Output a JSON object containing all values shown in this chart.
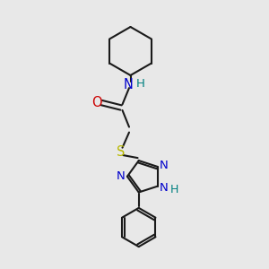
{
  "background_color": "#e8e8e8",
  "bond_color": "#1a1a1a",
  "nitrogen_color": "#0000cc",
  "oxygen_color": "#cc0000",
  "sulfur_color": "#b8b800",
  "nh_color": "#008080",
  "fig_width": 3.0,
  "fig_height": 3.0,
  "dpi": 100,
  "xlim": [
    0,
    10
  ],
  "ylim": [
    0,
    10
  ],
  "lw": 1.5,
  "fs": 9.5
}
